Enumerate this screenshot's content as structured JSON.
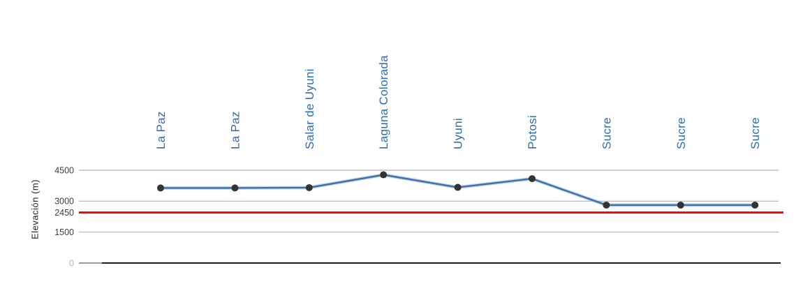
{
  "chart_data": {
    "type": "line",
    "title": "",
    "xlabel": "",
    "ylabel": "Elevación (m)",
    "categories": [
      "La Paz",
      "La Paz",
      "Salar de Uyuni",
      "Laguna Colorada",
      "Uyuni",
      "Potosi",
      "Sucre",
      "Sucre",
      "Sucre"
    ],
    "series": [
      {
        "name": "Elevación",
        "values": [
          3640,
          3640,
          3656,
          4278,
          3669,
          4090,
          2810,
          2810,
          2810
        ]
      }
    ],
    "ylim": [
      0,
      4500
    ],
    "yticks": [
      4500,
      3000,
      2450,
      1500,
      0
    ],
    "gridline_values": [
      4500,
      3000,
      1500
    ],
    "threshold_line": {
      "value": 2450,
      "label": "2450",
      "color": "#e60b0b"
    },
    "grid": "horizontal",
    "legend": false,
    "marker": "circle",
    "category_labels_position": "top-rotated-90",
    "colors": {
      "line": "#3d6fa8",
      "line_halo": "#9bbad8",
      "marker": "#333333",
      "category_label": "#2f6cad",
      "tick_label": "#3d3d3d",
      "zero_tick_label": "#b5b5b5",
      "gridline": "#b3b3b3",
      "axis_line": "#1a1a1a",
      "threshold": "#e60b0b"
    }
  }
}
